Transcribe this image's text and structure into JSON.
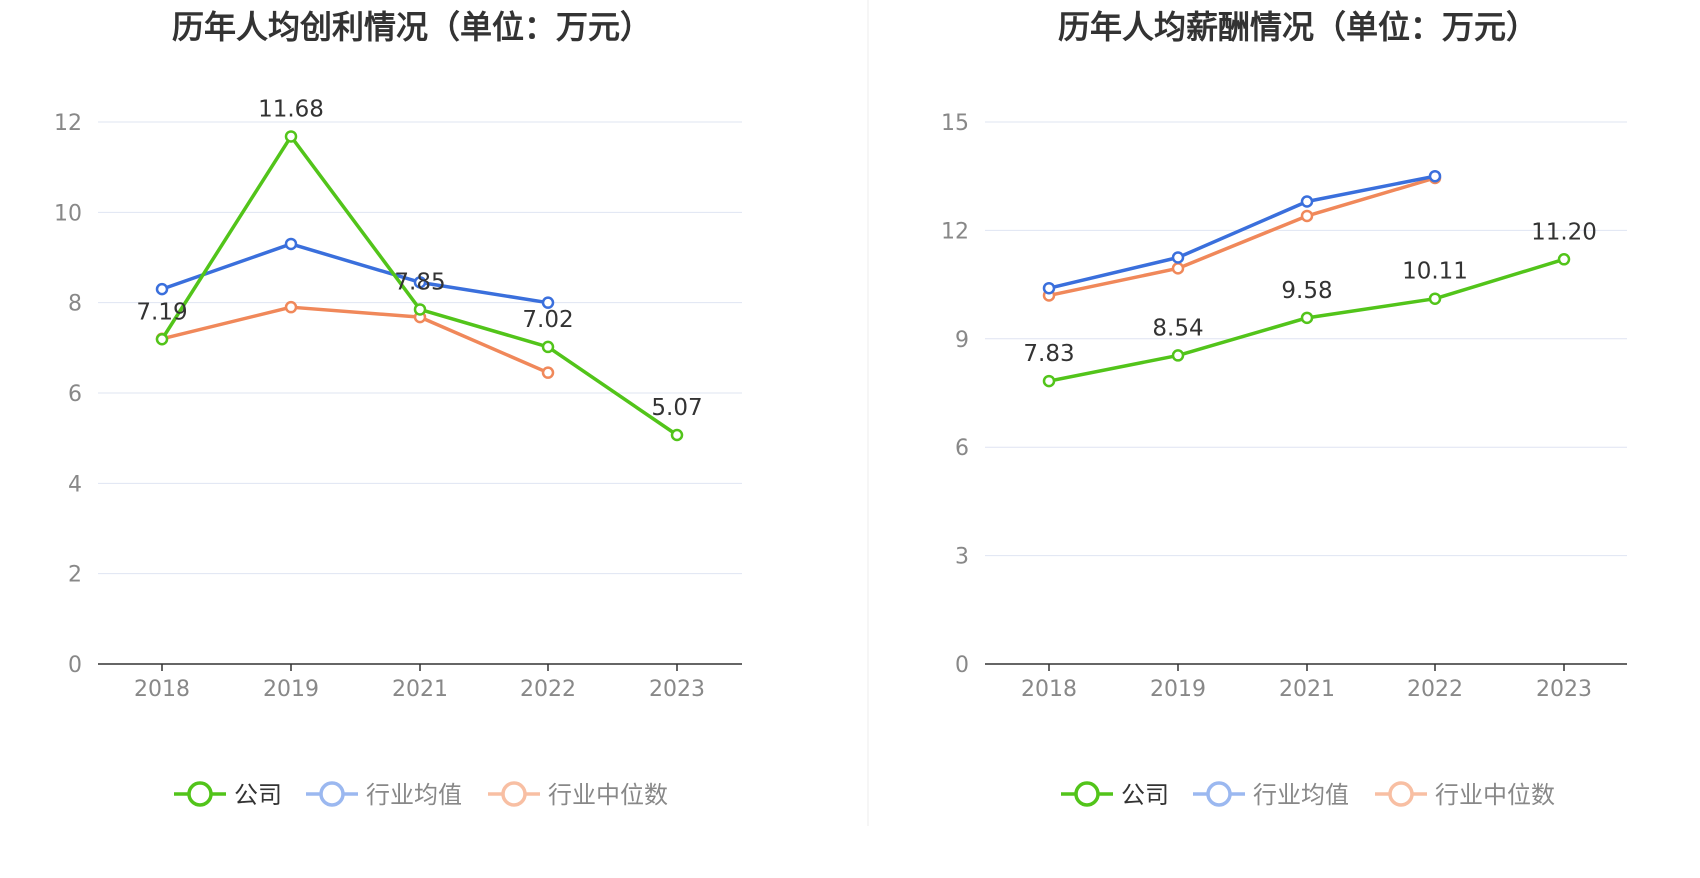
{
  "colors": {
    "company": "#52c41a",
    "industry_avg": "#3a6fdc",
    "industry_median": "#f0885a",
    "legend_avg": "#9bb8f0",
    "legend_median": "#f8bfa3",
    "grid": "#dfe4f2",
    "axis": "#333333",
    "tick_text": "#888888",
    "title": "#333333",
    "divider": "#eeeeee"
  },
  "chart_data": [
    {
      "type": "line",
      "title": "历年人均创利情况（单位：万元）",
      "categories": [
        "2018",
        "2019",
        "2021",
        "2022",
        "2023"
      ],
      "ylim": [
        0,
        12
      ],
      "yticks": [
        "0",
        "2",
        "4",
        "6",
        "8",
        "10",
        "12"
      ],
      "grid": true,
      "legend_position": "bottom",
      "series": [
        {
          "name": "公司",
          "values": [
            7.19,
            11.68,
            7.85,
            7.02,
            5.07
          ],
          "labels": [
            "7.19",
            "11.68",
            "7.85",
            "7.02",
            "5.07"
          ]
        },
        {
          "name": "行业均值",
          "values": [
            8.3,
            9.3,
            8.45,
            8.0,
            null
          ]
        },
        {
          "name": "行业中位数",
          "values": [
            7.2,
            7.9,
            7.68,
            6.45,
            null
          ]
        }
      ]
    },
    {
      "type": "line",
      "title": "历年人均薪酬情况（单位：万元）",
      "categories": [
        "2018",
        "2019",
        "2021",
        "2022",
        "2023"
      ],
      "ylim": [
        0,
        15
      ],
      "yticks": [
        "0",
        "3",
        "6",
        "9",
        "12",
        "15"
      ],
      "grid": true,
      "legend_position": "bottom",
      "series": [
        {
          "name": "公司",
          "values": [
            7.83,
            8.54,
            9.58,
            10.11,
            11.2
          ],
          "labels": [
            "7.83",
            "8.54",
            "9.58",
            "10.11",
            "11.20"
          ]
        },
        {
          "name": "行业均值",
          "values": [
            10.4,
            11.25,
            12.8,
            13.5,
            null
          ]
        },
        {
          "name": "行业中位数",
          "values": [
            10.2,
            10.95,
            12.4,
            13.45,
            null
          ]
        }
      ]
    }
  ]
}
